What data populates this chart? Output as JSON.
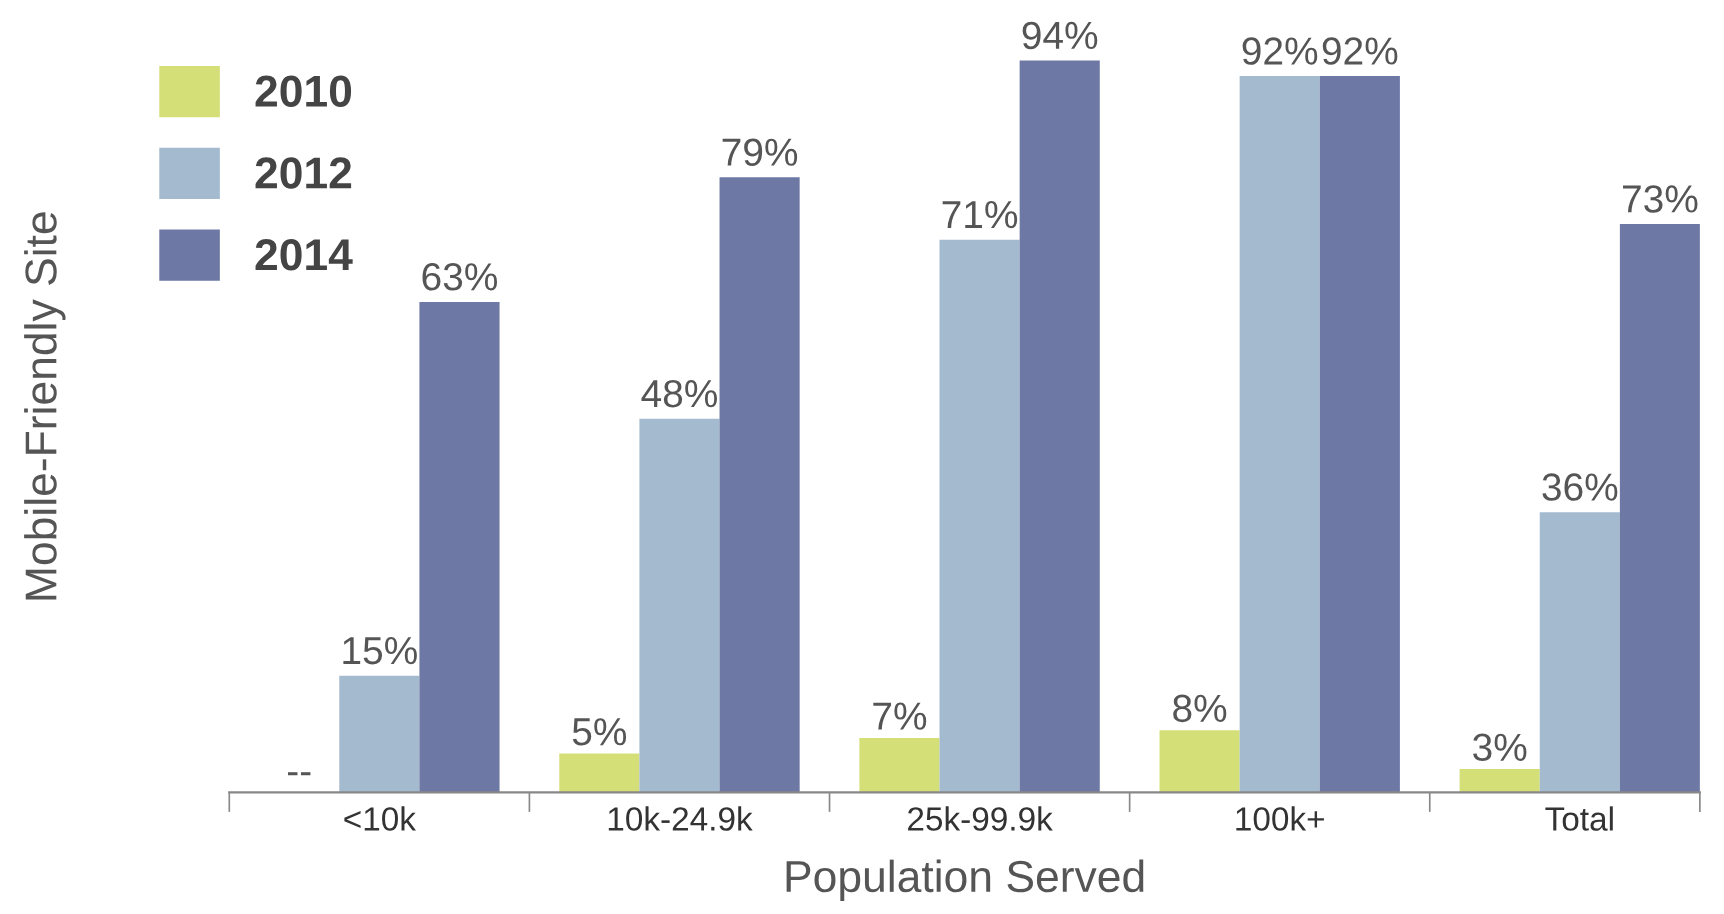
{
  "chart_data": {
    "type": "bar",
    "xlabel": "Population Served",
    "ylabel": "Mobile-Friendly Site",
    "categories": [
      "<10k",
      "10k-24.9k",
      "25k-99.9k",
      "100k+",
      "Total"
    ],
    "series": [
      {
        "name": "2010",
        "color": "#d5df78",
        "values": [
          null,
          5,
          7,
          8,
          3
        ],
        "value_labels": [
          "--",
          "5%",
          "7%",
          "8%",
          "3%"
        ]
      },
      {
        "name": "2012",
        "color": "#a3bacf",
        "values": [
          15,
          48,
          71,
          92,
          36
        ],
        "value_labels": [
          "15%",
          "48%",
          "71%",
          "92%",
          "36%"
        ]
      },
      {
        "name": "2014",
        "color": "#6e78a5",
        "values": [
          63,
          79,
          94,
          92,
          73
        ],
        "value_labels": [
          "63%",
          "79%",
          "94%",
          "92%",
          "73%"
        ]
      }
    ],
    "legend": "top left",
    "grid": false
  }
}
